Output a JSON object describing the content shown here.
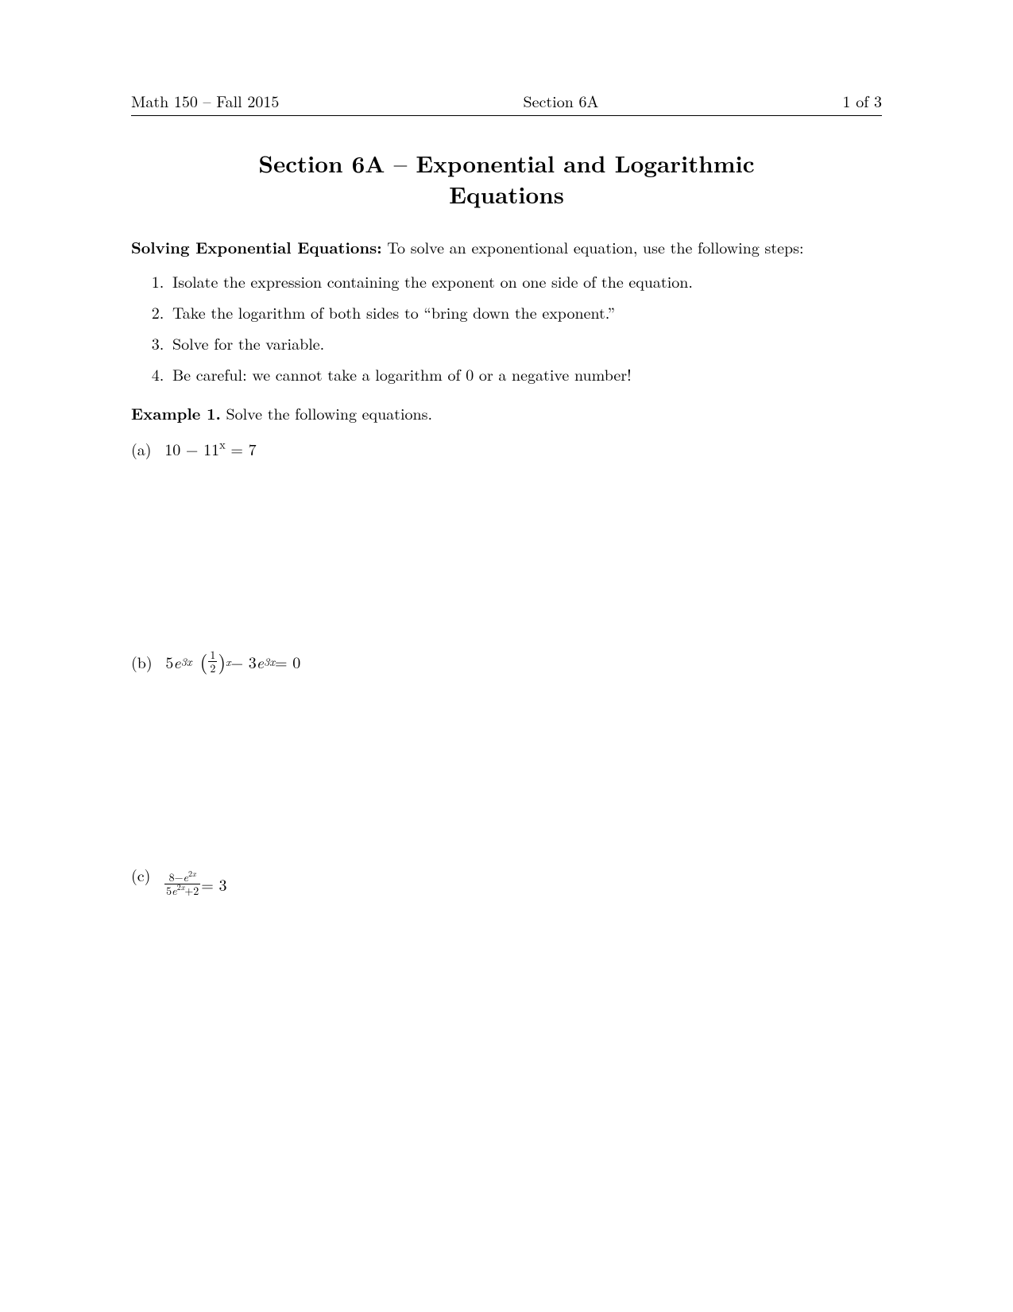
{
  "header": {
    "left": "Math 150 – Fall 2015",
    "center": "Section 6A",
    "right": "1 of 3"
  },
  "title": {
    "line1": "Section 6A – Exponential and Logarithmic",
    "line2": "Equations"
  },
  "intro": {
    "bold": "Solving Exponential Equations:",
    "rest": " To solve an exponentional equation, use the following steps:"
  },
  "steps": {
    "s1": "Isolate the expression containing the exponent on one side of the equation.",
    "s2": "Take the logarithm of both sides to “bring down the exponent.”",
    "s3": "Solve for the variable.",
    "s4": "Be careful: we cannot take a logarithm of 0 or a negative number!"
  },
  "example": {
    "label": "Example 1.",
    "text": " Solve the following equations."
  },
  "problems": {
    "a": {
      "label": "(a)",
      "eq_prefix": "10 − 11",
      "eq_sup": "x",
      "eq_suffix": " = 7"
    },
    "b": {
      "label": "(b)",
      "coef1": "5",
      "e1": "e",
      "exp1": "3x",
      "frac_num": "1",
      "frac_den": "2",
      "outer_exp": "x",
      "minus": " − 3",
      "e2": "e",
      "exp2": "3x",
      "suffix": " = 0"
    },
    "c": {
      "label": "(c)",
      "num_prefix": "8−",
      "num_e": "e",
      "num_exp": "2",
      "num_exp2": "x",
      "den_prefix": "5",
      "den_e": "e",
      "den_exp": "2",
      "den_exp2": "x",
      "den_suffix": "+2",
      "rhs": " = 3"
    }
  },
  "colors": {
    "text": "#000000",
    "background": "#ffffff",
    "rule": "#000000"
  },
  "fontsizes": {
    "body_pt": 20,
    "title_pt": 29,
    "header_pt": 20,
    "frac_small_pt": 14
  }
}
